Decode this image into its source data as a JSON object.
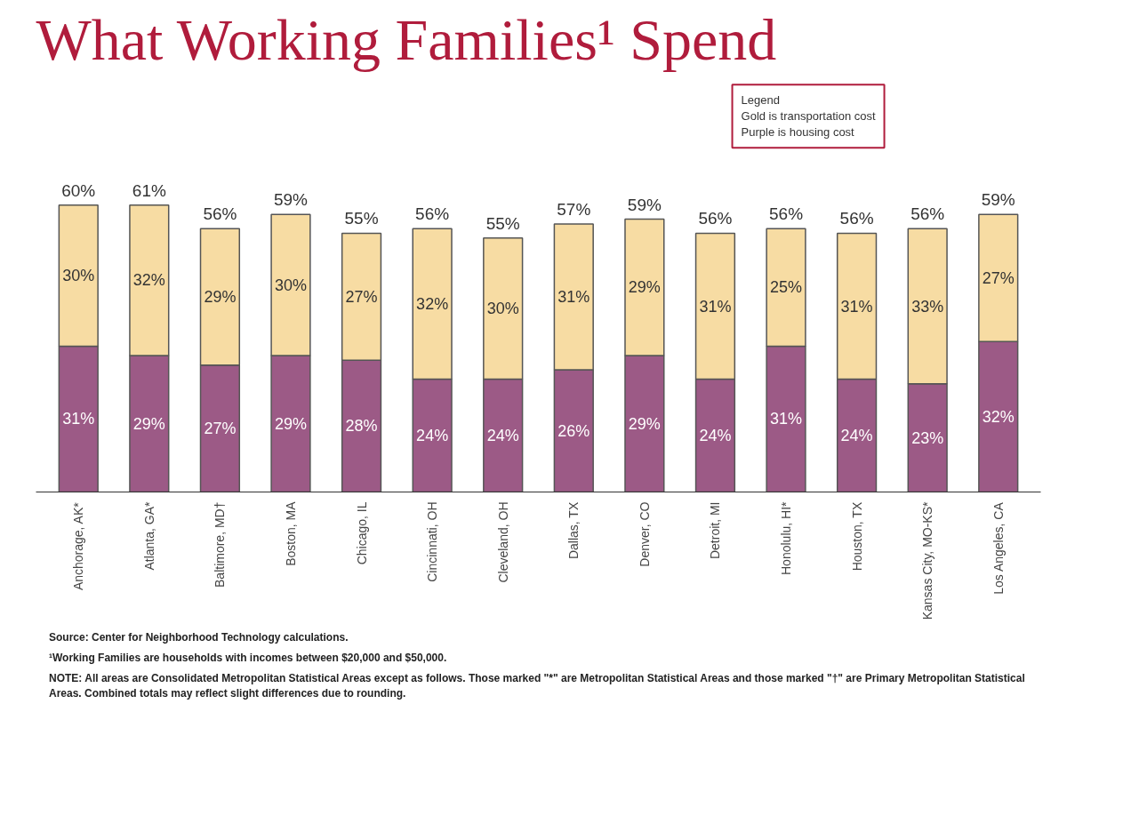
{
  "chart_data": {
    "type": "bar",
    "title": "What Working Families¹ Spend",
    "categories": [
      "Anchorage, AK*",
      "Atlanta, GA*",
      "Baltimore, MD†",
      "Boston, MA",
      "Chicago, IL",
      "Cincinnati, OH",
      "Cleveland, OH",
      "Dallas, TX",
      "Denver, CO",
      "Detroit, MI",
      "Honolulu, HI*",
      "Houston, TX",
      "Kansas City, MO-KS*",
      "Los Angeles, CA"
    ],
    "stacked": true,
    "series": [
      {
        "color": "#9c5a86",
        "values": [
          31,
          29,
          27,
          29,
          28,
          24,
          24,
          26,
          29,
          24,
          31,
          24,
          23,
          32
        ],
        "value_labels": [
          "31%",
          "29%",
          "27%",
          "29%",
          "28%",
          "24%",
          "24%",
          "26%",
          "29%",
          "24%",
          "31%",
          "24%",
          "23%",
          "32%"
        ]
      },
      {
        "color": "#f7dca3",
        "values": [
          30,
          32,
          29,
          30,
          27,
          32,
          30,
          31,
          29,
          31,
          25,
          31,
          33,
          27
        ],
        "value_labels": [
          "30%",
          "32%",
          "29%",
          "30%",
          "27%",
          "32%",
          "30%",
          "31%",
          "29%",
          "31%",
          "25%",
          "31%",
          "33%",
          "27%"
        ]
      }
    ],
    "totals": [
      "60%",
      "61%",
      "56%",
      "59%",
      "55%",
      "56%",
      "55%",
      "57%",
      "59%",
      "56%",
      "56%",
      "56%",
      "56%",
      "59%"
    ],
    "grid": false,
    "annotations": [
      "Legend\nGold is transportation cost\nPurple is housing cost",
      "Source: Center for Neighborhood Technology calculations.",
      "¹Working Families are households with incomes between $20,000 and $50,000.",
      "NOTE: All areas are Consolidated Metropolitan Statistical Areas except as follows. Those marked \"*\" are Metropolitan Statistical Areas and those marked \"†\" are Primary Metropolitan Statistical Areas.  Combined totals may reflect slight differences due to rounding."
    ]
  }
}
